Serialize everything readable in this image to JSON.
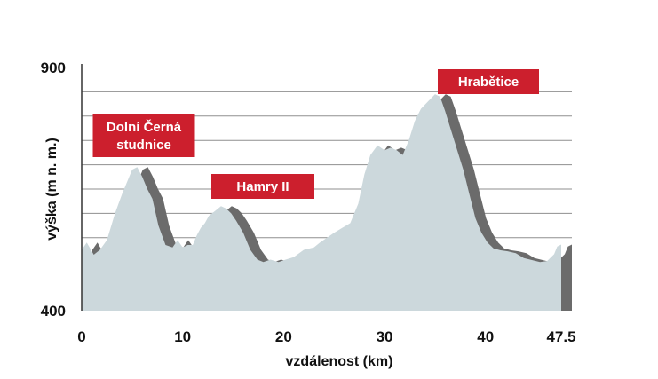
{
  "chart_data": {
    "type": "area",
    "title": "",
    "xlabel": "vzdálenost (km)",
    "ylabel": "výška (m n. m.)",
    "xlim": [
      0,
      47.5
    ],
    "ylim": [
      400,
      900
    ],
    "x_ticks": [
      "0",
      "10",
      "20",
      "30",
      "40",
      "47.5"
    ],
    "x_tick_values": [
      0,
      10,
      20,
      30,
      40,
      47.5
    ],
    "y_ticks": [
      "900",
      "400"
    ],
    "y_tick_values": [
      900,
      400
    ],
    "grid": true,
    "gridlines": [
      850,
      800,
      750,
      700,
      650,
      600,
      550,
      500,
      450
    ],
    "colors": {
      "profile_fill": "#ccd8dc",
      "shadow_fill": "#6b6b6b",
      "label_background": "#cc1f2d",
      "label_text": "#ffffff",
      "grid": "#8f8f8f",
      "axis": "#333333"
    },
    "series": [
      {
        "x": [
          0,
          0.5,
          1.2,
          1.8,
          2.5,
          3.3,
          4.0,
          5.0,
          5.5,
          6.0,
          6.5,
          7.0,
          7.6,
          8.3,
          9.0,
          9.5,
          10.0,
          10.5,
          11.0,
          11.4,
          11.8,
          12.2,
          12.6,
          13.2,
          13.8,
          14.3,
          14.8,
          15.3,
          16.0,
          16.7,
          17.4,
          18.0,
          18.7,
          19.5,
          20.2,
          21.0,
          22.0,
          23.0,
          23.6,
          24.3,
          25.0,
          25.8,
          26.6,
          27.4,
          28.0,
          28.6,
          29.3,
          30.0,
          30.6,
          31.2,
          31.8,
          32.4,
          33.0,
          33.6,
          34.3,
          35.0,
          35.5,
          36.0,
          36.6,
          37.2,
          37.8,
          38.4,
          39.0,
          39.6,
          40.2,
          40.8,
          41.5,
          42.2,
          43.0,
          43.8,
          44.6,
          45.4,
          46.1,
          46.8,
          47.1,
          47.5
        ],
        "values": [
          525,
          540,
          515,
          525,
          545,
          600,
          640,
          690,
          695,
          675,
          650,
          630,
          575,
          535,
          530,
          545,
          530,
          535,
          535,
          555,
          570,
          580,
          595,
          605,
          615,
          610,
          600,
          585,
          560,
          525,
          505,
          500,
          505,
          500,
          505,
          510,
          525,
          530,
          540,
          550,
          560,
          570,
          580,
          620,
          680,
          720,
          740,
          730,
          735,
          730,
          720,
          750,
          790,
          815,
          830,
          845,
          840,
          810,
          770,
          730,
          690,
          640,
          590,
          560,
          540,
          528,
          524,
          522,
          518,
          508,
          504,
          500,
          502,
          516,
          532,
          536
        ]
      }
    ],
    "peaks": [
      {
        "label": "Dolní Černá studnice",
        "lines": [
          "Dolní Černá",
          "studnice"
        ],
        "x": 5.6,
        "y": 695
      },
      {
        "label": "Hamry II",
        "lines": [
          "Hamry II"
        ],
        "x": 14.3,
        "y": 615
      },
      {
        "label": "Hrabětice",
        "lines": [
          "Hrabětice"
        ],
        "x": 35.0,
        "y": 845
      }
    ]
  }
}
